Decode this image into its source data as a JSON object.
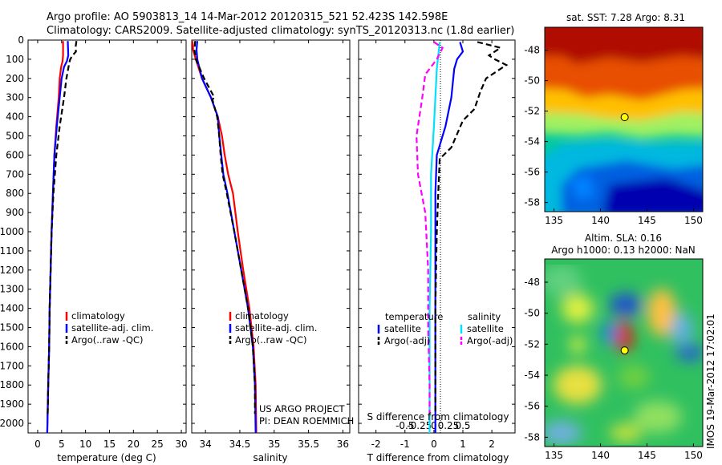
{
  "title": {
    "line1": "Argo profile: AO 5903813_14 14-Mar-2012 20120315_521 52.423S 142.598E",
    "line2": "Climatology: CARS2009. Satellite-adjusted climatology: synTS_20120313.nc (1.8d earlier)"
  },
  "colors": {
    "climatology": "#ff0000",
    "satellite": "#0000ff",
    "argo": "#000000",
    "satellite_s": "#00e0ff",
    "argo_s": "#ff00ff"
  },
  "chart_data": [
    {
      "type": "line",
      "id": "temperature",
      "xlabel": "temperature (deg C)",
      "ylabel": "",
      "xlim": [
        -2,
        31
      ],
      "ylim": [
        2050,
        0
      ],
      "xticks": [
        0,
        5,
        10,
        15,
        20,
        25,
        30
      ],
      "yticks": [
        0,
        100,
        200,
        300,
        400,
        500,
        600,
        700,
        800,
        900,
        1000,
        1100,
        1200,
        1300,
        1400,
        1500,
        1600,
        1700,
        1800,
        1900,
        2000
      ],
      "legend": [
        "climatology",
        "satellite-adj. clim.",
        "Argo(..raw -QC)"
      ],
      "series": [
        {
          "name": "climatology",
          "style": "solid",
          "points": [
            [
              5.3,
              5
            ],
            [
              5.3,
              80
            ],
            [
              5.2,
              110
            ],
            [
              4.9,
              140
            ],
            [
              4.6,
              200
            ],
            [
              4.4,
              300
            ],
            [
              3.9,
              450
            ],
            [
              3.5,
              600
            ],
            [
              3.2,
              800
            ],
            [
              2.9,
              1000
            ],
            [
              2.7,
              1200
            ],
            [
              2.5,
              1400
            ],
            [
              2.4,
              1600
            ],
            [
              2.2,
              1800
            ],
            [
              2.0,
              2050
            ]
          ]
        },
        {
          "name": "satellite-adj. clim.",
          "style": "solid",
          "points": [
            [
              6.3,
              5
            ],
            [
              6.4,
              80
            ],
            [
              6.1,
              110
            ],
            [
              5.5,
              140
            ],
            [
              5.0,
              200
            ],
            [
              4.6,
              300
            ],
            [
              4.0,
              450
            ],
            [
              3.5,
              600
            ],
            [
              3.2,
              800
            ],
            [
              2.9,
              1000
            ],
            [
              2.7,
              1200
            ],
            [
              2.5,
              1400
            ],
            [
              2.4,
              1600
            ],
            [
              2.2,
              1800
            ],
            [
              2.0,
              2050
            ]
          ]
        },
        {
          "name": "Argo(..raw -QC)",
          "style": "dashed",
          "points": [
            [
              8.1,
              5
            ],
            [
              7.9,
              40
            ],
            [
              8.0,
              60
            ],
            [
              7.3,
              80
            ],
            [
              6.8,
              100
            ],
            [
              6.6,
              120
            ],
            [
              6.0,
              200
            ],
            [
              5.5,
              300
            ],
            [
              4.6,
              450
            ],
            [
              3.9,
              600
            ],
            [
              3.3,
              800
            ],
            [
              2.9,
              1000
            ],
            [
              2.7,
              1200
            ],
            [
              2.5,
              1400
            ],
            [
              2.4,
              1600
            ],
            [
              2.2,
              1800
            ],
            [
              2.1,
              1950
            ]
          ]
        }
      ]
    },
    {
      "type": "line",
      "id": "salinity",
      "xlabel": "salinity",
      "ylabel": "",
      "xlim": [
        33.8,
        36.1
      ],
      "ylim": [
        2050,
        0
      ],
      "xticks": [
        34,
        34.5,
        35,
        35.5,
        36
      ],
      "legend": [
        "climatology",
        "satellite-adj. clim.",
        "Argo(..raw -QC)"
      ],
      "series": [
        {
          "name": "climatology",
          "style": "solid",
          "points": [
            [
              33.81,
              5
            ],
            [
              33.82,
              50
            ],
            [
              33.86,
              100
            ],
            [
              33.95,
              200
            ],
            [
              34.08,
              300
            ],
            [
              34.18,
              400
            ],
            [
              34.24,
              500
            ],
            [
              34.28,
              600
            ],
            [
              34.33,
              700
            ],
            [
              34.4,
              800
            ],
            [
              34.47,
              1000
            ],
            [
              34.55,
              1200
            ],
            [
              34.64,
              1400
            ],
            [
              34.7,
              1600
            ],
            [
              34.73,
              1800
            ],
            [
              34.74,
              2050
            ]
          ]
        },
        {
          "name": "satellite-adj. clim.",
          "style": "solid",
          "points": [
            [
              33.88,
              5
            ],
            [
              33.87,
              50
            ],
            [
              33.88,
              100
            ],
            [
              33.95,
              200
            ],
            [
              34.08,
              300
            ],
            [
              34.18,
              400
            ],
            [
              34.2,
              500
            ],
            [
              34.23,
              600
            ],
            [
              34.26,
              700
            ],
            [
              34.32,
              800
            ],
            [
              34.42,
              1000
            ],
            [
              34.52,
              1200
            ],
            [
              34.62,
              1400
            ],
            [
              34.69,
              1600
            ],
            [
              34.72,
              1800
            ],
            [
              34.73,
              2050
            ]
          ]
        },
        {
          "name": "Argo(..raw -QC)",
          "style": "dashed",
          "points": [
            [
              33.85,
              5
            ],
            [
              33.84,
              50
            ],
            [
              33.86,
              100
            ],
            [
              33.98,
              200
            ],
            [
              34.13,
              300
            ],
            [
              34.1,
              310
            ],
            [
              34.17,
              400
            ],
            [
              34.2,
              500
            ],
            [
              34.22,
              600
            ],
            [
              34.25,
              700
            ],
            [
              34.31,
              800
            ],
            [
              34.42,
              1000
            ],
            [
              34.52,
              1200
            ],
            [
              34.62,
              1400
            ],
            [
              34.69,
              1600
            ],
            [
              34.72,
              1800
            ],
            [
              34.72,
              1950
            ]
          ]
        }
      ]
    },
    {
      "type": "line",
      "id": "difference",
      "xlabel": "T difference from climatology",
      "top_label": "S difference from climatology",
      "xlim": [
        -2.6,
        2.8
      ],
      "ylim": [
        2050,
        0
      ],
      "xticks": [
        -2,
        -1,
        0,
        1,
        2
      ],
      "s_ticks": [
        [
          "-0.5",
          -1.0
        ],
        [
          "-0.25",
          -0.5
        ],
        [
          "0",
          0
        ],
        [
          "0.25",
          0.5
        ],
        [
          "0.5",
          1.0
        ]
      ],
      "legend_titles": [
        "temperature",
        "salinity"
      ],
      "legend": [
        [
          "satellite",
          "Argo(-adj)"
        ],
        [
          "satellite",
          "Argo(-adj)"
        ]
      ],
      "series": [
        {
          "name": "temperature satellite",
          "style": "solid",
          "points": [
            [
              0.9,
              10
            ],
            [
              1.0,
              60
            ],
            [
              0.8,
              100
            ],
            [
              0.7,
              150
            ],
            [
              0.6,
              300
            ],
            [
              0.4,
              450
            ],
            [
              0.1,
              600
            ],
            [
              0.05,
              800
            ],
            [
              0.05,
              1000
            ],
            [
              0.05,
              1400
            ],
            [
              0.05,
              1800
            ],
            [
              0.05,
              2050
            ]
          ]
        },
        {
          "name": "temperature Argo(-adj)",
          "style": "dashed",
          "points": [
            [
              1.5,
              10
            ],
            [
              2.3,
              40
            ],
            [
              1.9,
              80
            ],
            [
              2.1,
              100
            ],
            [
              2.5,
              130
            ],
            [
              1.8,
              200
            ],
            [
              1.6,
              270
            ],
            [
              1.4,
              360
            ],
            [
              1.0,
              420
            ],
            [
              0.6,
              560
            ],
            [
              0.2,
              620
            ],
            [
              0.15,
              800
            ],
            [
              0.1,
              1000
            ],
            [
              0.05,
              1400
            ],
            [
              0.05,
              1800
            ],
            [
              0.05,
              1950
            ]
          ]
        },
        {
          "name": "salinity satellite",
          "style": "solid",
          "points": [
            [
              0.2,
              10
            ],
            [
              0.15,
              80
            ],
            [
              0.1,
              150
            ],
            [
              0.05,
              300
            ],
            [
              0.0,
              450
            ],
            [
              -0.1,
              700
            ],
            [
              -0.1,
              1000
            ],
            [
              -0.15,
              1400
            ],
            [
              -0.15,
              1800
            ],
            [
              -0.15,
              2050
            ]
          ]
        },
        {
          "name": "salinity Argo(-adj)",
          "style": "dashed",
          "points": [
            [
              0.0,
              10
            ],
            [
              0.3,
              40
            ],
            [
              0.1,
              100
            ],
            [
              -0.3,
              180
            ],
            [
              -0.4,
              300
            ],
            [
              -0.5,
              400
            ],
            [
              -0.6,
              500
            ],
            [
              -0.55,
              700
            ],
            [
              -0.3,
              900
            ],
            [
              -0.2,
              1200
            ],
            [
              -0.2,
              1500
            ],
            [
              -0.15,
              1800
            ],
            [
              -0.15,
              1950
            ]
          ]
        }
      ],
      "watermark": [
        "US ARGO PROJECT",
        "PI: DEAN ROEMMICH"
      ]
    },
    {
      "type": "heatmap",
      "id": "sst",
      "title": "sat. SST: 7.28  Argo: 8.31",
      "xlim": [
        134,
        151
      ],
      "ylim": [
        -58.6,
        -46.5
      ],
      "xticks": [
        135,
        140,
        145,
        150
      ],
      "yticks": [
        -48,
        -50,
        -52,
        -54,
        -56,
        -58
      ],
      "marker": [
        142.6,
        -52.4
      ]
    },
    {
      "type": "heatmap",
      "id": "sla",
      "title": [
        "Altim. SLA: 0.16",
        "Argo h1000: 0.13 h2000: NaN"
      ],
      "xlim": [
        134,
        151
      ],
      "ylim": [
        -58.6,
        -46.5
      ],
      "xticks": [
        135,
        140,
        145,
        150
      ],
      "yticks": [
        -48,
        -50,
        -52,
        -54,
        -56,
        -58
      ],
      "marker": [
        142.6,
        -52.4
      ]
    }
  ],
  "stamp": "IMOS 19-Mar-2012 17:02:01"
}
